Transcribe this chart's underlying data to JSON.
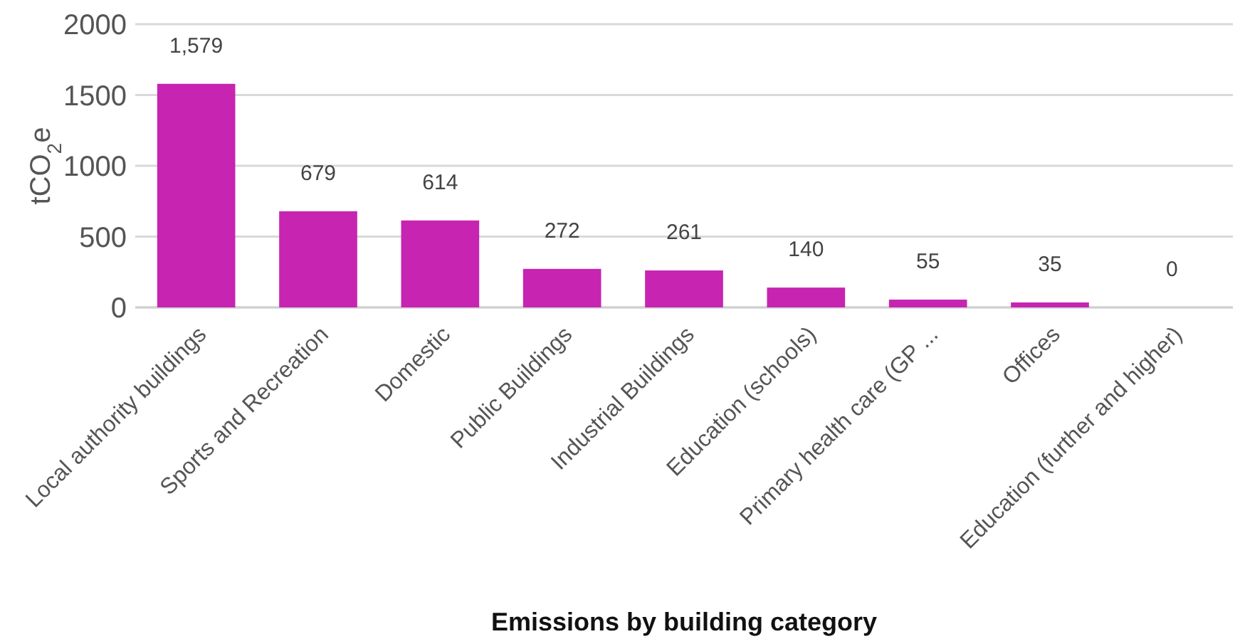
{
  "chart_data": {
    "type": "bar",
    "xlabel": "Emissions by building category",
    "ylabel": "tCO$_{2}$e",
    "categories": [
      "Local authority buildings",
      "Sports and Recreation",
      "Domestic",
      "Public Buildings",
      "Industrial Buildings",
      "Education (schools)",
      "Primary health care (GP ...",
      "Offices",
      "Education (further and higher)"
    ],
    "values": [
      1579,
      679,
      614,
      272,
      261,
      140,
      55,
      35,
      0
    ],
    "value_labels": [
      "1,579",
      "679",
      "614",
      "272",
      "261",
      "140",
      "55",
      "35",
      "0"
    ],
    "color": "#c724b1",
    "ylim": [
      0,
      2000
    ],
    "yticks": [
      0,
      500,
      1000,
      1500,
      2000
    ],
    "grid": "y"
  }
}
